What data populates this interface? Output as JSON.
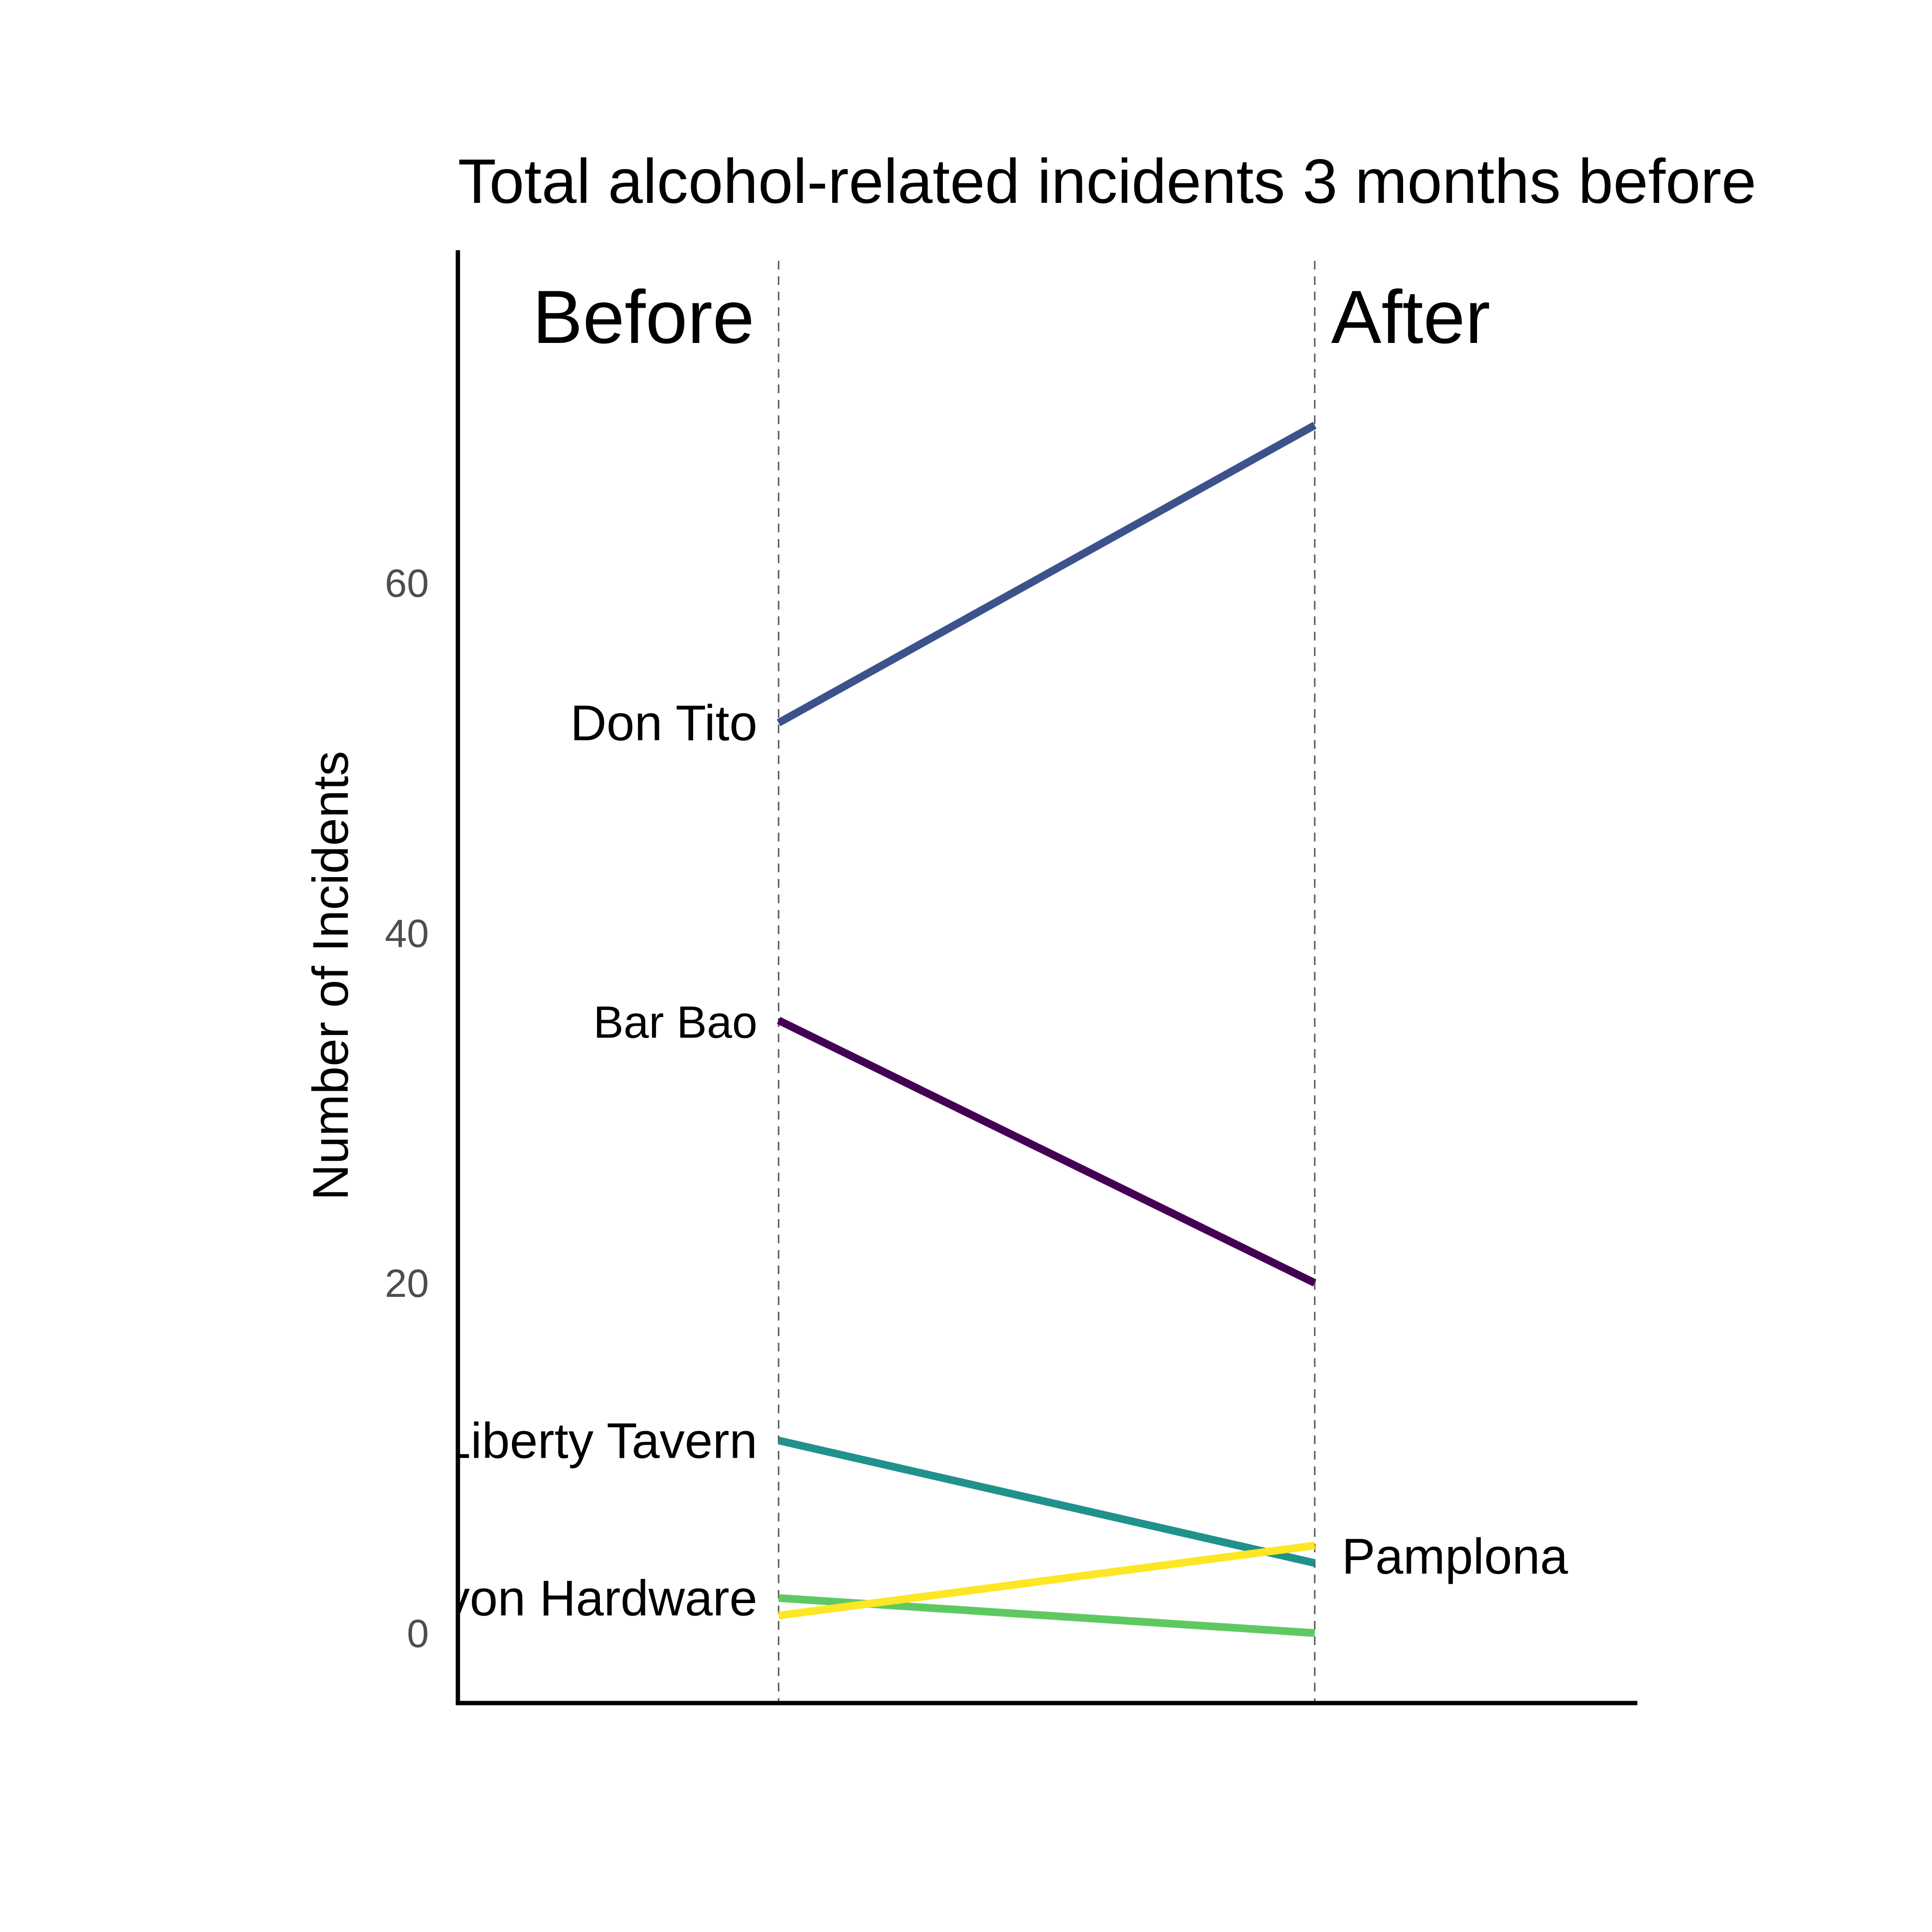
{
  "chart_data": {
    "type": "line",
    "title": "Total alcohol-related incidents 3 months before",
    "xlabel": "",
    "ylabel": "Number of Incidents",
    "categories": [
      "Before",
      "After"
    ],
    "ylim": [
      -4,
      79
    ],
    "yticks": [
      0,
      20,
      40,
      60
    ],
    "ytick_labels": [
      "0",
      "20",
      "40",
      "60"
    ],
    "grid": false,
    "legend": "none",
    "series": [
      {
        "name": "Don Tito",
        "values": [
          52,
          69
        ],
        "color": "#3b528b",
        "label_side": "left"
      },
      {
        "name": "Bar Bao",
        "values": [
          35,
          20
        ],
        "color": "#440154",
        "label_side": "left",
        "label_small": true
      },
      {
        "name": "Liberty Tavern",
        "values": [
          11,
          4
        ],
        "color": "#21918c",
        "label_side": "left"
      },
      {
        "name": "Lyon Hardware",
        "values": [
          2,
          0
        ],
        "color": "#5ec962",
        "label_side": "left"
      },
      {
        "name": "Pamplona",
        "values": [
          1,
          5
        ],
        "color": "#fde725",
        "label_side": "right"
      }
    ]
  }
}
